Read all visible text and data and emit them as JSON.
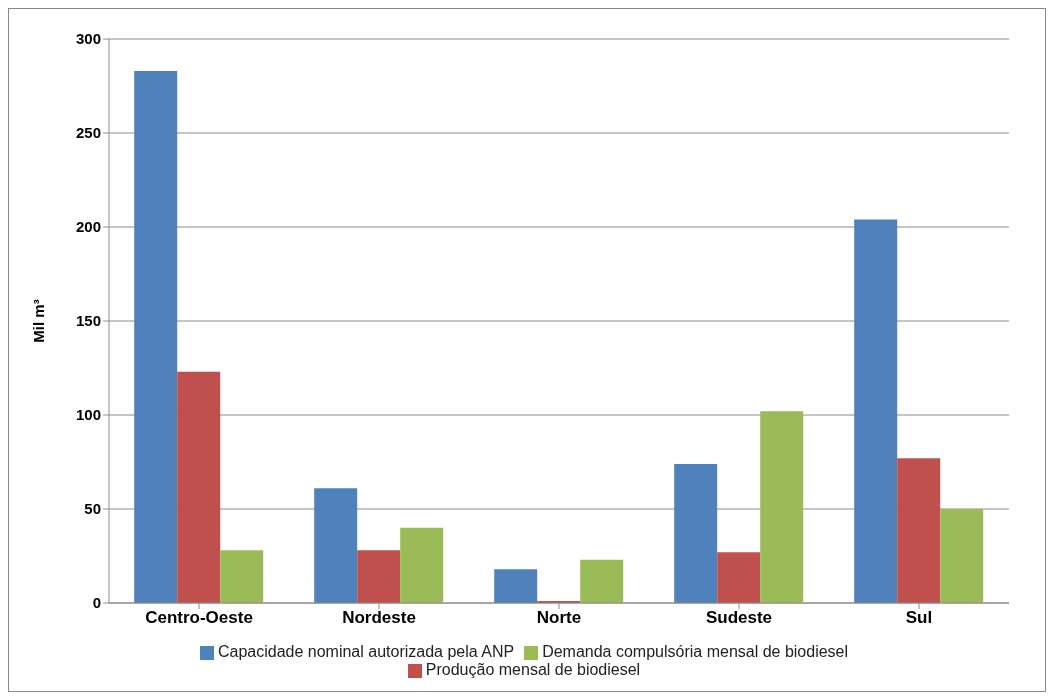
{
  "chart_data": {
    "type": "bar",
    "ylabel": "Mil m³",
    "categories": [
      "Centro-Oeste",
      "Nordeste",
      "Norte",
      "Sudeste",
      "Sul"
    ],
    "series": [
      {
        "name": "Capacidade nominal autorizada pela ANP",
        "color": "#4f81bd",
        "values": [
          283,
          61,
          18,
          74,
          204
        ]
      },
      {
        "name": "Produção mensal de biodiesel",
        "color": "#c0504d",
        "values": [
          123,
          28,
          1,
          27,
          77
        ]
      },
      {
        "name": "Demanda compulsória mensal de biodiesel",
        "color": "#9bbb59",
        "values": [
          28,
          40,
          23,
          102,
          50
        ]
      }
    ],
    "ylim": [
      0,
      300
    ],
    "yticks": [
      0,
      50,
      100,
      150,
      200,
      250,
      300
    ],
    "grid": "y",
    "legend": "bottom"
  }
}
